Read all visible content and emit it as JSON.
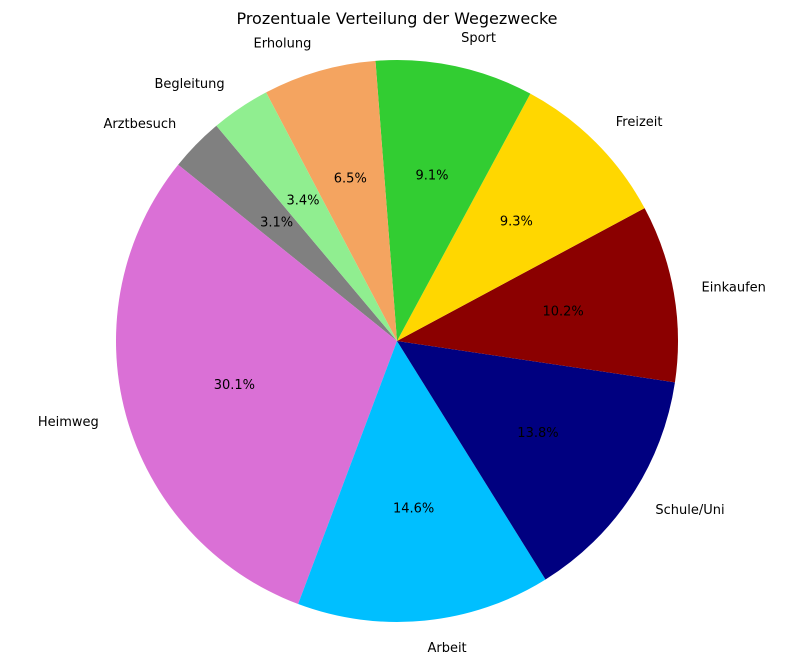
{
  "chart_data": {
    "type": "pie",
    "title": "Prozentuale Verteilung der Wegezwecke",
    "start_angle_deg": 130,
    "direction": "counterclockwise",
    "slices": [
      {
        "label": "Arztbesuch",
        "value": 3.1,
        "pct_text": "3.1%",
        "color": "#808080"
      },
      {
        "label": "Heimweg",
        "value": 30.1,
        "pct_text": "30.1%",
        "color": "#da70d6"
      },
      {
        "label": "Arbeit",
        "value": 14.6,
        "pct_text": "14.6%",
        "color": "#00bfff"
      },
      {
        "label": "Schule/Uni",
        "value": 13.8,
        "pct_text": "13.8%",
        "color": "#000080"
      },
      {
        "label": "Einkaufen",
        "value": 10.2,
        "pct_text": "10.2%",
        "color": "#8b0000"
      },
      {
        "label": "Freizeit",
        "value": 9.3,
        "pct_text": "9.3%",
        "color": "#ffd700"
      },
      {
        "label": "Sport",
        "value": 9.1,
        "pct_text": "9.1%",
        "color": "#32cd32"
      },
      {
        "label": "Erholung",
        "value": 6.5,
        "pct_text": "6.5%",
        "color": "#f4a460"
      },
      {
        "label": "Begleitung",
        "value": 3.4,
        "pct_text": "3.4%",
        "color": "#90ee90"
      }
    ]
  }
}
